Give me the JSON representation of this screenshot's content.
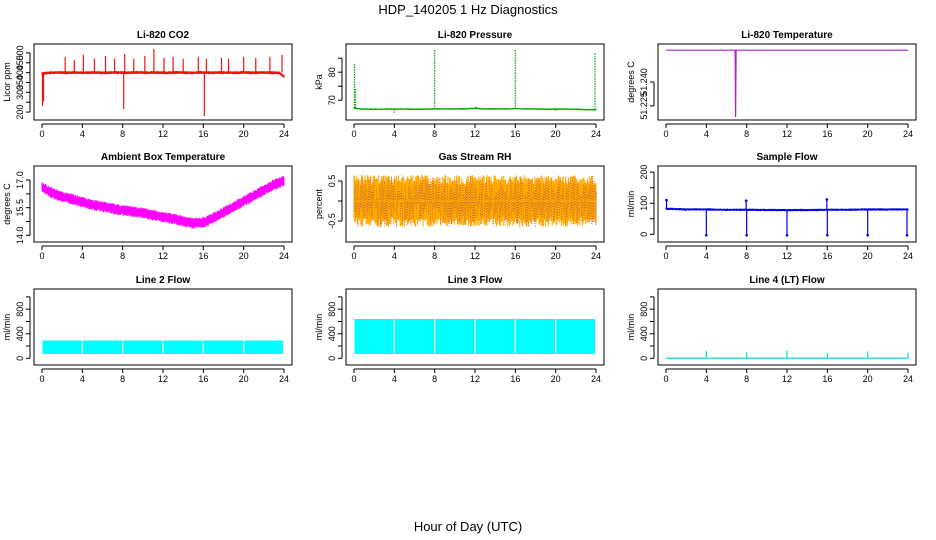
{
  "page": {
    "title": "HDP_140205  1 Hz Diagnostics",
    "xlabel": "Hour of Day (UTC)"
  },
  "chart_data": [
    {
      "type": "line",
      "title": "Li-820 CO2",
      "ylabel": "Licor ppm",
      "color": "#ee1111",
      "xlim": [
        0,
        24
      ],
      "ylim": [
        175,
        530
      ],
      "x_ticks": [
        0,
        4,
        8,
        12,
        16,
        20,
        24
      ],
      "y_ticks": [
        200,
        250,
        300,
        350,
        400,
        450,
        500
      ],
      "y_tick_labels": [
        "200",
        "",
        "300",
        "350",
        "400",
        "450",
        "500"
      ],
      "series": [
        {
          "x": [
            0,
            0.5,
            1,
            1.5,
            2,
            2.5,
            3,
            3.5,
            4,
            4.5,
            5,
            5.5,
            6,
            6.5,
            7,
            7.5,
            8,
            8.5,
            9,
            9.5,
            10,
            10.5,
            11,
            11.5,
            12,
            12.5,
            13,
            13.5,
            14,
            14.5,
            15,
            15.5,
            16,
            16.5,
            17,
            17.5,
            18,
            18.5,
            19,
            19.5,
            20,
            20.5,
            21,
            21.5,
            22,
            22.5,
            23,
            23.5,
            24
          ],
          "y": [
            395,
            398,
            400,
            401,
            400,
            399,
            401,
            400,
            399,
            400,
            401,
            400,
            399,
            400,
            401,
            400,
            400,
            399,
            400,
            401,
            400,
            399,
            401,
            400,
            400,
            399,
            400,
            401,
            400,
            400,
            399,
            401,
            400,
            400,
            399,
            401,
            400,
            400,
            399,
            400,
            401,
            400,
            399,
            400,
            401,
            400,
            399,
            400,
            380
          ],
          "band": 8,
          "spikes": [
            {
              "x": 0.05,
              "y": 230
            },
            {
              "x": 0.15,
              "y": 255
            },
            {
              "x": 2.3,
              "y": 480
            },
            {
              "x": 3.2,
              "y": 465
            },
            {
              "x": 4.1,
              "y": 490
            },
            {
              "x": 5.2,
              "y": 470
            },
            {
              "x": 6.3,
              "y": 485
            },
            {
              "x": 7.2,
              "y": 470
            },
            {
              "x": 8.1,
              "y": 215
            },
            {
              "x": 8.2,
              "y": 495
            },
            {
              "x": 9.1,
              "y": 470
            },
            {
              "x": 10.2,
              "y": 485
            },
            {
              "x": 11.1,
              "y": 520
            },
            {
              "x": 12.1,
              "y": 475
            },
            {
              "x": 13.0,
              "y": 480
            },
            {
              "x": 14.0,
              "y": 470
            },
            {
              "x": 15.5,
              "y": 480
            },
            {
              "x": 16.1,
              "y": 180
            },
            {
              "x": 16.3,
              "y": 470
            },
            {
              "x": 17.8,
              "y": 475
            },
            {
              "x": 18.5,
              "y": 470
            },
            {
              "x": 20.0,
              "y": 480
            },
            {
              "x": 21.2,
              "y": 475
            },
            {
              "x": 22.6,
              "y": 480
            },
            {
              "x": 23.8,
              "y": 490
            }
          ]
        }
      ]
    },
    {
      "type": "line",
      "title": "Li-820 Pressure",
      "ylabel": "kPa",
      "color": "#00aa00",
      "dotted": true,
      "xlim": [
        0,
        24
      ],
      "ylim": [
        64,
        89
      ],
      "x_ticks": [
        0,
        4,
        8,
        12,
        16,
        20,
        24
      ],
      "y_ticks": [
        70,
        75,
        80,
        85
      ],
      "y_tick_labels": [
        "70",
        "",
        "80",
        ""
      ],
      "series": [
        {
          "x": [
            0,
            0.3,
            1,
            2,
            3,
            4,
            5,
            6,
            7,
            8,
            9,
            10,
            11,
            12,
            13,
            14,
            15,
            16,
            17,
            18,
            19,
            20,
            21,
            22,
            23,
            24
          ],
          "y": [
            67.2,
            67,
            66.8,
            66.8,
            66.8,
            66.8,
            66.8,
            66.8,
            66.8,
            66.9,
            66.9,
            66.9,
            66.9,
            67.1,
            66.9,
            66.9,
            66.9,
            67.0,
            66.9,
            66.9,
            66.8,
            66.8,
            66.8,
            66.8,
            66.6,
            66.6
          ],
          "band": 0.3,
          "spikes": [
            {
              "x": 0.05,
              "y": 83
            },
            {
              "x": 0.15,
              "y": 74
            },
            {
              "x": 4.0,
              "y": 65.5
            },
            {
              "x": 8.0,
              "y": 88
            },
            {
              "x": 12.1,
              "y": 67.7
            },
            {
              "x": 16.0,
              "y": 88
            },
            {
              "x": 20.0,
              "y": 66.0
            },
            {
              "x": 23.9,
              "y": 87
            }
          ]
        }
      ]
    },
    {
      "type": "line",
      "title": "Li-820 Temperature",
      "ylabel": "degrees C",
      "color": "#aa22cc",
      "xlim": [
        0,
        24
      ],
      "ylim": [
        51.218,
        51.262
      ],
      "x_ticks": [
        0,
        4,
        8,
        12,
        16,
        20,
        24
      ],
      "y_ticks": [
        51.225,
        51.24
      ],
      "y_tick_labels": [
        "51.225",
        "51.240"
      ],
      "series": [
        {
          "x": [
            0,
            6.85,
            6.9,
            6.95,
            24
          ],
          "y": [
            51.26,
            51.26,
            51.218,
            51.26,
            51.26
          ],
          "band": 0,
          "spikes": []
        }
      ]
    },
    {
      "type": "line",
      "title": "Ambient Box Temperature",
      "ylabel": "degrees C",
      "color": "#ff00ff",
      "xlim": [
        0,
        24
      ],
      "ylim": [
        13.8,
        17.6
      ],
      "x_ticks": [
        0,
        4,
        8,
        12,
        16,
        20,
        24
      ],
      "y_ticks": [
        14.0,
        14.75,
        15.5,
        16.25,
        17.0
      ],
      "y_tick_labels": [
        "14.0",
        "",
        "15.5",
        "",
        "17.0"
      ],
      "series": [
        {
          "x": [
            0,
            1,
            2,
            3,
            4,
            5,
            6,
            7,
            8,
            9,
            10,
            11,
            12,
            13,
            14,
            15,
            16,
            17,
            18,
            19,
            20,
            21,
            22,
            23,
            24
          ],
          "y": [
            16.6,
            16.3,
            16.1,
            15.95,
            15.8,
            15.65,
            15.55,
            15.45,
            15.35,
            15.3,
            15.2,
            15.1,
            15.0,
            14.9,
            14.75,
            14.65,
            14.7,
            14.95,
            15.25,
            15.55,
            15.85,
            16.15,
            16.45,
            16.75,
            16.95
          ],
          "band": 0.3,
          "spikes": []
        }
      ]
    },
    {
      "type": "line",
      "title": "Gas Stream RH",
      "ylabel": "percent",
      "color": "#ffaa00",
      "hatch_color": "#aa3355",
      "xlim": [
        0,
        24
      ],
      "ylim": [
        -0.95,
        0.8
      ],
      "x_ticks": [
        0,
        4,
        8,
        12,
        16,
        20,
        24
      ],
      "y_ticks": [
        -0.5,
        0,
        0.5
      ],
      "y_tick_labels": [
        "-0.5",
        "",
        "0.5"
      ],
      "series": [
        {
          "x": [
            0,
            24
          ],
          "y": [
            0,
            0
          ],
          "band": 0.65,
          "spikes": []
        }
      ]
    },
    {
      "type": "line",
      "title": "Sample Flow",
      "ylabel": "ml/min",
      "color": "#0000ee",
      "xlim": [
        0,
        24
      ],
      "ylim": [
        -15,
        210
      ],
      "x_ticks": [
        0,
        4,
        8,
        12,
        16,
        20,
        24
      ],
      "y_ticks": [
        0,
        50,
        100,
        150,
        200
      ],
      "y_tick_labels": [
        "0",
        "",
        "100",
        "",
        "200"
      ],
      "series": [
        {
          "x": [
            0,
            2,
            4,
            6,
            8,
            10,
            12,
            14,
            16,
            18,
            20,
            22,
            24
          ],
          "y": [
            82,
            80,
            80,
            79,
            79,
            78,
            78,
            78,
            79,
            79,
            80,
            80,
            80
          ],
          "band": 4,
          "spikes": [
            {
              "x": 0.05,
              "y": 110
            },
            {
              "x": 4.0,
              "y": -3
            },
            {
              "x": 8.0,
              "y": -3
            },
            {
              "x": 7.95,
              "y": 108
            },
            {
              "x": 12.0,
              "y": -3
            },
            {
              "x": 16.0,
              "y": -3
            },
            {
              "x": 15.95,
              "y": 112
            },
            {
              "x": 20.0,
              "y": -3
            },
            {
              "x": 23.9,
              "y": -3
            }
          ]
        }
      ]
    },
    {
      "type": "area",
      "title": "Line 2 Flow",
      "ylabel": "ml/min",
      "color": "#00ffff",
      "xlim": [
        0,
        24
      ],
      "ylim": [
        -60,
        1080
      ],
      "x_ticks": [
        0,
        4,
        8,
        12,
        16,
        20,
        24
      ],
      "y_ticks": [
        0,
        200,
        400,
        600,
        800,
        1000
      ],
      "y_tick_labels": [
        "0",
        "",
        "400",
        "",
        "800",
        ""
      ],
      "series": [
        {
          "x": [
            0.05,
            23.9
          ],
          "low": 70,
          "high": 290,
          "gaps": [
            4,
            8,
            12,
            16,
            20
          ]
        }
      ]
    },
    {
      "type": "area",
      "title": "Line 3 Flow",
      "ylabel": "ml/min",
      "color": "#00ffff",
      "xlim": [
        0,
        24
      ],
      "ylim": [
        -60,
        1080
      ],
      "x_ticks": [
        0,
        4,
        8,
        12,
        16,
        20,
        24
      ],
      "y_ticks": [
        0,
        200,
        400,
        600,
        800,
        1000
      ],
      "y_tick_labels": [
        "0",
        "",
        "400",
        "",
        "800",
        ""
      ],
      "series": [
        {
          "x": [
            0.05,
            23.9
          ],
          "low": 70,
          "high": 640,
          "gaps": [
            4,
            8,
            12,
            16,
            20
          ]
        }
      ]
    },
    {
      "type": "line",
      "title": "Line 4 (LT) Flow",
      "ylabel": "ml/min",
      "color": "#00dddd",
      "xlim": [
        0,
        24
      ],
      "ylim": [
        -60,
        1080
      ],
      "x_ticks": [
        0,
        4,
        8,
        12,
        16,
        20,
        24
      ],
      "y_ticks": [
        0,
        200,
        400,
        600,
        800,
        1000
      ],
      "y_tick_labels": [
        "0",
        "",
        "400",
        "",
        "800",
        ""
      ],
      "series": [
        {
          "x": [
            0,
            24
          ],
          "y": [
            3,
            3
          ],
          "band": 2,
          "spikes": [
            {
              "x": 4.0,
              "y": 120
            },
            {
              "x": 8.0,
              "y": 95
            },
            {
              "x": 12.0,
              "y": 130
            },
            {
              "x": 16.0,
              "y": 90
            },
            {
              "x": 20.0,
              "y": 110
            },
            {
              "x": 24.0,
              "y": 95
            }
          ]
        }
      ]
    }
  ]
}
